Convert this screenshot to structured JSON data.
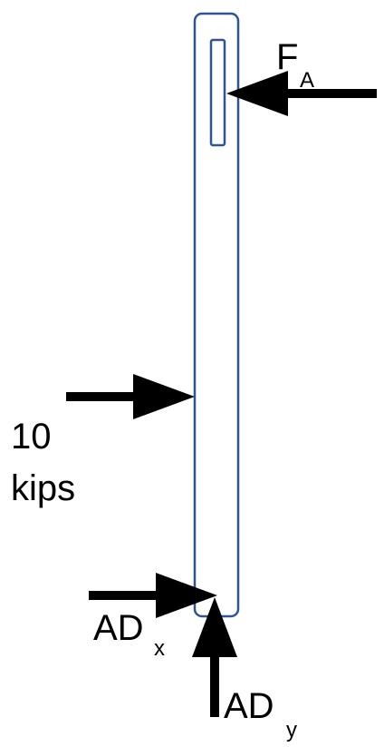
{
  "member_color": "#2f5597",
  "arrow_color": "#000000",
  "background": "#ffffff",
  "labels": {
    "fa_main": "F",
    "fa_sub": "A",
    "load_value": "10",
    "load_unit": "kips",
    "adx_main": "AD",
    "adx_sub": "x",
    "ady_main": "AD",
    "ady_sub": "y"
  }
}
